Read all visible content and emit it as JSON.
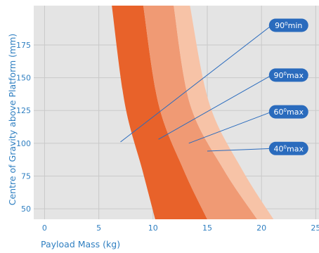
{
  "chart_data": {
    "type": "area",
    "xlabel": "Payload Mass (kg)",
    "ylabel": "Centre of Gravity above Platform (mm)",
    "xlim": [
      -1,
      25.3
    ],
    "ylim": [
      42,
      205
    ],
    "x_ticks": [
      0,
      5,
      10,
      15,
      20,
      25
    ],
    "y_ticks": [
      50,
      75,
      100,
      125,
      150,
      175
    ],
    "grid": true,
    "colors": {
      "axis_text": "#2f7fc1",
      "grid": "#c9c9c9",
      "plot_bg": "#e4e4e4",
      "callout_bg": "#2a6bbd",
      "callout_line": "#2a6bbd"
    },
    "bands": [
      {
        "label": "90°min",
        "color": "#e8622a",
        "inner": [
          [
            6.2,
            205
          ],
          [
            7.4,
            130
          ],
          [
            9.0,
            80
          ],
          [
            10.2,
            42
          ]
        ],
        "outer": [
          [
            9.1,
            205
          ],
          [
            10.5,
            130
          ],
          [
            12.8,
            80
          ],
          [
            15.0,
            42
          ]
        ]
      },
      {
        "label": "90°max",
        "color": "#f09a74",
        "inner": [
          [
            9.1,
            205
          ],
          [
            10.5,
            130
          ],
          [
            12.8,
            80
          ],
          [
            15.0,
            42
          ]
        ],
        "outer": [
          [
            11.9,
            205
          ],
          [
            13.4,
            130
          ],
          [
            16.5,
            80
          ],
          [
            19.6,
            42
          ]
        ]
      },
      {
        "label": "60°max",
        "color": "#f7c3a7",
        "inner": [
          [
            11.9,
            205
          ],
          [
            13.4,
            130
          ],
          [
            16.5,
            80
          ],
          [
            19.6,
            42
          ]
        ],
        "outer": [
          [
            13.4,
            205
          ],
          [
            15.2,
            130
          ],
          [
            18.2,
            80
          ],
          [
            21.1,
            42
          ]
        ]
      }
    ],
    "callouts": [
      {
        "base": "90",
        "sup": "0",
        "suffix": "min",
        "at": [
          22.5,
          190
        ],
        "target": [
          7.0,
          101
        ]
      },
      {
        "base": "90",
        "sup": "0",
        "suffix": "max",
        "at": [
          22.5,
          152
        ],
        "target": [
          10.5,
          103
        ]
      },
      {
        "base": "60",
        "sup": "0",
        "suffix": "max",
        "at": [
          22.5,
          124
        ],
        "target": [
          13.3,
          100
        ]
      },
      {
        "base": "40",
        "sup": "0",
        "suffix": "max",
        "at": [
          22.5,
          96
        ],
        "target": [
          15.0,
          94
        ]
      }
    ]
  }
}
